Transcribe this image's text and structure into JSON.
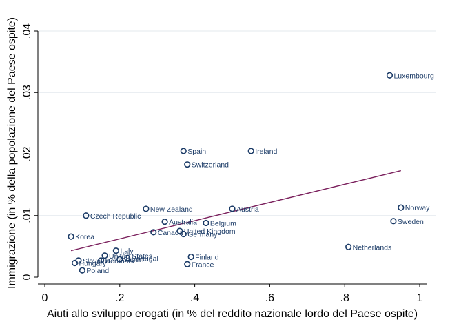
{
  "chart_data": {
    "type": "scatter",
    "title": "",
    "xlabel": "Aiuti allo sviluppo erogati (in % del reddito nazionale lordo del Paese ospite)",
    "ylabel": "Immigrazione (in % della popolazione del Paese ospite)",
    "xlim": [
      0,
      1
    ],
    "ylim": [
      0,
      0.04
    ],
    "xticks": [
      0,
      0.2,
      0.4,
      0.6,
      0.8,
      1
    ],
    "xtick_labels": [
      "0",
      ".2",
      ".4",
      ".6",
      ".8",
      "1"
    ],
    "yticks": [
      0,
      0.01,
      0.02,
      0.03,
      0.04
    ],
    "ytick_labels": [
      "0",
      ".01",
      ".02",
      ".03",
      ".04"
    ],
    "grid": "horizontal",
    "marker_color": "#1a3a66",
    "fit_line_color": "#7a1f5c",
    "fit_line": {
      "x": [
        0.07,
        0.95
      ],
      "y": [
        0.0043,
        0.0173
      ]
    },
    "points": [
      {
        "label": "Luxembourg",
        "x": 0.92,
        "y": 0.0328
      },
      {
        "label": "Spain",
        "x": 0.37,
        "y": 0.0205
      },
      {
        "label": "Ireland",
        "x": 0.55,
        "y": 0.0205
      },
      {
        "label": "Switzerland",
        "x": 0.38,
        "y": 0.0183
      },
      {
        "label": "New Zealand",
        "x": 0.27,
        "y": 0.0111
      },
      {
        "label": "Austria",
        "x": 0.5,
        "y": 0.0111
      },
      {
        "label": "Norway",
        "x": 0.95,
        "y": 0.0113
      },
      {
        "label": "Czech Republic",
        "x": 0.11,
        "y": 0.01
      },
      {
        "label": "Australia",
        "x": 0.32,
        "y": 0.009
      },
      {
        "label": "Belgium",
        "x": 0.43,
        "y": 0.0088
      },
      {
        "label": "Sweden",
        "x": 0.93,
        "y": 0.0091
      },
      {
        "label": "Canada",
        "x": 0.29,
        "y": 0.0073
      },
      {
        "label": "United Kingdom",
        "x": 0.36,
        "y": 0.0075
      },
      {
        "label": "Germany",
        "x": 0.37,
        "y": 0.007
      },
      {
        "label": "Korea",
        "x": 0.07,
        "y": 0.0066
      },
      {
        "label": "Netherlands",
        "x": 0.81,
        "y": 0.0049
      },
      {
        "label": "Italy",
        "x": 0.19,
        "y": 0.0043
      },
      {
        "label": "United States",
        "x": 0.16,
        "y": 0.0035
      },
      {
        "label": "Japan",
        "x": 0.2,
        "y": 0.0029
      },
      {
        "label": "Portugal",
        "x": 0.22,
        "y": 0.0031
      },
      {
        "label": "Finland",
        "x": 0.39,
        "y": 0.0033
      },
      {
        "label": "Slovakia",
        "x": 0.09,
        "y": 0.0027
      },
      {
        "label": "Denmark",
        "x": 0.15,
        "y": 0.0027
      },
      {
        "label": "Hungary",
        "x": 0.08,
        "y": 0.0023
      },
      {
        "label": "France",
        "x": 0.38,
        "y": 0.0021
      },
      {
        "label": "Poland",
        "x": 0.1,
        "y": 0.0011
      }
    ]
  }
}
